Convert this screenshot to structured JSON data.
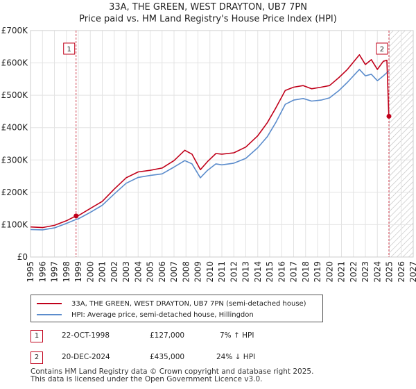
{
  "chart_data": {
    "type": "line",
    "title": "33A, THE GREEN, WEST DRAYTON, UB7 7PN",
    "subtitle": "Price paid vs. HM Land Registry's House Price Index (HPI)",
    "xlabel": "",
    "ylabel": "",
    "xlim": [
      1995,
      2027
    ],
    "ylim": [
      0,
      700000
    ],
    "grid": true,
    "x_ticks": [
      "1995",
      "1996",
      "1997",
      "1998",
      "1999",
      "2000",
      "2001",
      "2002",
      "2003",
      "2004",
      "2005",
      "2006",
      "2007",
      "2008",
      "2009",
      "2010",
      "2011",
      "2012",
      "2013",
      "2014",
      "2015",
      "2016",
      "2017",
      "2018",
      "2019",
      "2020",
      "2021",
      "2022",
      "2023",
      "2024",
      "2025",
      "2026",
      "2027"
    ],
    "y_ticks": [
      {
        "value": 0,
        "label": "£0"
      },
      {
        "value": 100000,
        "label": "£100K"
      },
      {
        "value": 200000,
        "label": "£200K"
      },
      {
        "value": 300000,
        "label": "£300K"
      },
      {
        "value": 400000,
        "label": "£400K"
      },
      {
        "value": 500000,
        "label": "£500K"
      },
      {
        "value": 600000,
        "label": "£600K"
      },
      {
        "value": 700000,
        "label": "£700K"
      }
    ],
    "hatch_from": 2025.0,
    "series": [
      {
        "name": "33A, THE GREEN, WEST DRAYTON, UB7 7PN (semi-detached house)",
        "color": "#c0001a",
        "points": [
          [
            1995,
            93000
          ],
          [
            1996,
            91000
          ],
          [
            1997,
            98000
          ],
          [
            1998,
            112000
          ],
          [
            1998.8,
            127000
          ],
          [
            1999,
            128000
          ],
          [
            2000,
            150000
          ],
          [
            2001,
            172000
          ],
          [
            2002,
            210000
          ],
          [
            2003,
            245000
          ],
          [
            2004,
            263000
          ],
          [
            2005,
            268000
          ],
          [
            2006,
            275000
          ],
          [
            2007,
            298000
          ],
          [
            2007.9,
            330000
          ],
          [
            2008.5,
            318000
          ],
          [
            2009.2,
            270000
          ],
          [
            2009.8,
            295000
          ],
          [
            2010.5,
            320000
          ],
          [
            2011,
            318000
          ],
          [
            2012,
            322000
          ],
          [
            2013,
            340000
          ],
          [
            2014,
            375000
          ],
          [
            2014.8,
            415000
          ],
          [
            2015.5,
            460000
          ],
          [
            2016.3,
            515000
          ],
          [
            2017,
            525000
          ],
          [
            2017.8,
            530000
          ],
          [
            2018.5,
            520000
          ],
          [
            2019.3,
            525000
          ],
          [
            2020,
            530000
          ],
          [
            2020.8,
            555000
          ],
          [
            2021.5,
            580000
          ],
          [
            2022.5,
            625000
          ],
          [
            2023,
            595000
          ],
          [
            2023.5,
            610000
          ],
          [
            2024,
            580000
          ],
          [
            2024.5,
            605000
          ],
          [
            2024.8,
            608000
          ],
          [
            2024.96,
            435000
          ]
        ]
      },
      {
        "name": "HPI: Average price, semi-detached house, Hillingdon",
        "color": "#5b8ccc",
        "points": [
          [
            1995,
            85000
          ],
          [
            1996,
            84000
          ],
          [
            1997,
            90000
          ],
          [
            1998,
            104000
          ],
          [
            1998.8,
            116000
          ],
          [
            1999,
            118000
          ],
          [
            2000,
            138000
          ],
          [
            2001,
            160000
          ],
          [
            2002,
            195000
          ],
          [
            2003,
            228000
          ],
          [
            2004,
            246000
          ],
          [
            2005,
            252000
          ],
          [
            2006,
            257000
          ],
          [
            2007,
            278000
          ],
          [
            2007.9,
            298000
          ],
          [
            2008.5,
            288000
          ],
          [
            2009.2,
            245000
          ],
          [
            2009.8,
            268000
          ],
          [
            2010.5,
            288000
          ],
          [
            2011,
            285000
          ],
          [
            2012,
            290000
          ],
          [
            2013,
            305000
          ],
          [
            2014,
            338000
          ],
          [
            2014.8,
            372000
          ],
          [
            2015.5,
            415000
          ],
          [
            2016.3,
            472000
          ],
          [
            2017,
            485000
          ],
          [
            2017.8,
            490000
          ],
          [
            2018.5,
            482000
          ],
          [
            2019.3,
            485000
          ],
          [
            2020,
            492000
          ],
          [
            2020.8,
            515000
          ],
          [
            2021.5,
            540000
          ],
          [
            2022.5,
            580000
          ],
          [
            2023,
            560000
          ],
          [
            2023.5,
            565000
          ],
          [
            2024,
            545000
          ],
          [
            2024.5,
            560000
          ],
          [
            2024.96,
            575000
          ]
        ]
      }
    ],
    "sales": [
      {
        "id": "1",
        "x": 1998.81,
        "y": 127000,
        "date": "22-OCT-1998",
        "price": "£127,000",
        "hpi": "7% ↑ HPI"
      },
      {
        "id": "2",
        "x": 2024.97,
        "y": 435000,
        "date": "20-DEC-2024",
        "price": "£435,000",
        "hpi": "24% ↓ HPI"
      }
    ]
  },
  "legend": {
    "red_label": "33A, THE GREEN, WEST DRAYTON, UB7 7PN (semi-detached house)",
    "blue_label": "HPI: Average price, semi-detached house, Hillingdon"
  },
  "footer": {
    "line1": "Contains HM Land Registry data © Crown copyright and database right 2025.",
    "line2": "This data is licensed under the Open Government Licence v3.0."
  }
}
